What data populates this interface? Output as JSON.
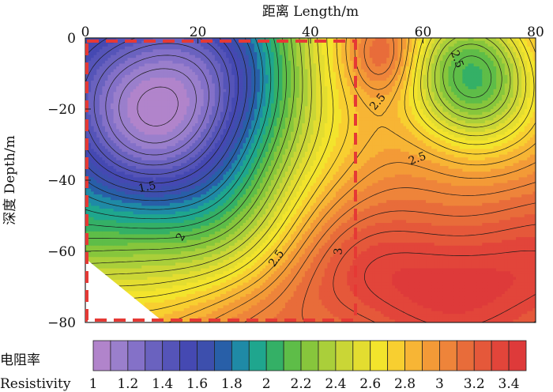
{
  "chart_data": {
    "type": "heatmap",
    "subtype": "contour",
    "xlabel": "距离 Length/m",
    "ylabel": "深度 Depth/m",
    "xlim": [
      0,
      80
    ],
    "ylim": [
      -80,
      0
    ],
    "x_axis_position": "top",
    "x_ticks": [
      "0",
      "20",
      "40",
      "60",
      "80"
    ],
    "y_ticks": [
      "0",
      "−20",
      "−40",
      "−60",
      "−80"
    ],
    "colorbar": {
      "label_cn": "电阻率",
      "label_en": "Resistivity",
      "min": 1.0,
      "max": 3.5,
      "step": 0.1,
      "tick_labels": [
        "1",
        "1.2",
        "1.4",
        "1.6",
        "1.8",
        "2",
        "2.2",
        "2.4",
        "2.6",
        "2.8",
        "3",
        "3.2",
        "3.4"
      ],
      "colors": [
        "#b184cb",
        "#9a7fcc",
        "#8471c8",
        "#6a62bf",
        "#5554b8",
        "#4549b2",
        "#3d4fad",
        "#285fa8",
        "#1f8aa6",
        "#1fa68e",
        "#34b066",
        "#5ebd48",
        "#87c63c",
        "#aacf3a",
        "#cad636",
        "#e3dd30",
        "#f3e42c",
        "#f8cf30",
        "#f7b535",
        "#f39a37",
        "#ee843a",
        "#e86c3a",
        "#e5583a",
        "#e2453a",
        "#de3a3a"
      ]
    },
    "contour_labels": [
      "1.5",
      "2",
      "2.5",
      "2.5",
      "2.5",
      "3",
      "2.5"
    ],
    "field_features": [
      {
        "kind": "low",
        "x": 15,
        "y": -16,
        "value": 1.0
      },
      {
        "kind": "high",
        "x": 69,
        "y": -12,
        "value": 2.2
      },
      {
        "kind": "high",
        "x": 65,
        "y": -68,
        "value": 3.4
      },
      {
        "kind": "high",
        "x": 53,
        "y": -5,
        "value": 3.3
      }
    ],
    "dashed_boxes": [
      {
        "x0": 0,
        "x1": 48,
        "y0": 0,
        "y1": -80,
        "color": "#e53935"
      }
    ],
    "blank_region": "lower-left corner (no data)"
  }
}
